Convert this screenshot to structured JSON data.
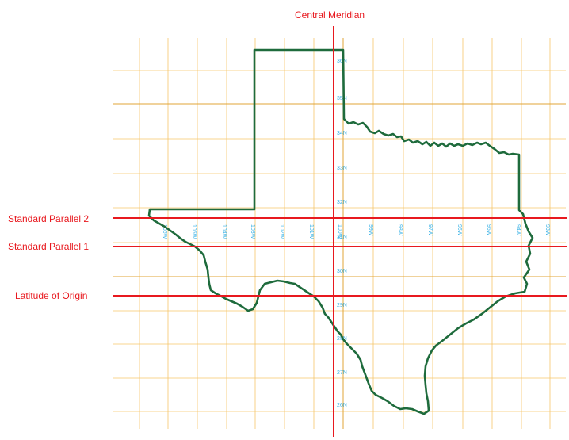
{
  "labels": {
    "central_meridian": "Central Meridian",
    "standard_parallel_2": "Standard Parallel 2",
    "standard_parallel_1": "Standard Parallel 1",
    "latitude_of_origin": "Latitude of Origin"
  },
  "latitude_labels": [
    "36N",
    "35N",
    "34N",
    "33N",
    "32N",
    "31N",
    "30N",
    "29N",
    "28N",
    "27N",
    "26N"
  ],
  "longitude_labels": [
    "106W",
    "105W",
    "104W",
    "103W",
    "102W",
    "101W",
    "100W",
    "99W",
    "98W",
    "97W",
    "96W",
    "95W",
    "94W",
    "93W"
  ],
  "colors": {
    "grid": "#f6c66a",
    "grid_major": "#e0a437",
    "outline": "#1e6b3c",
    "projection_lines": "#e8191f",
    "grid_labels": "#3fb4e6"
  }
}
